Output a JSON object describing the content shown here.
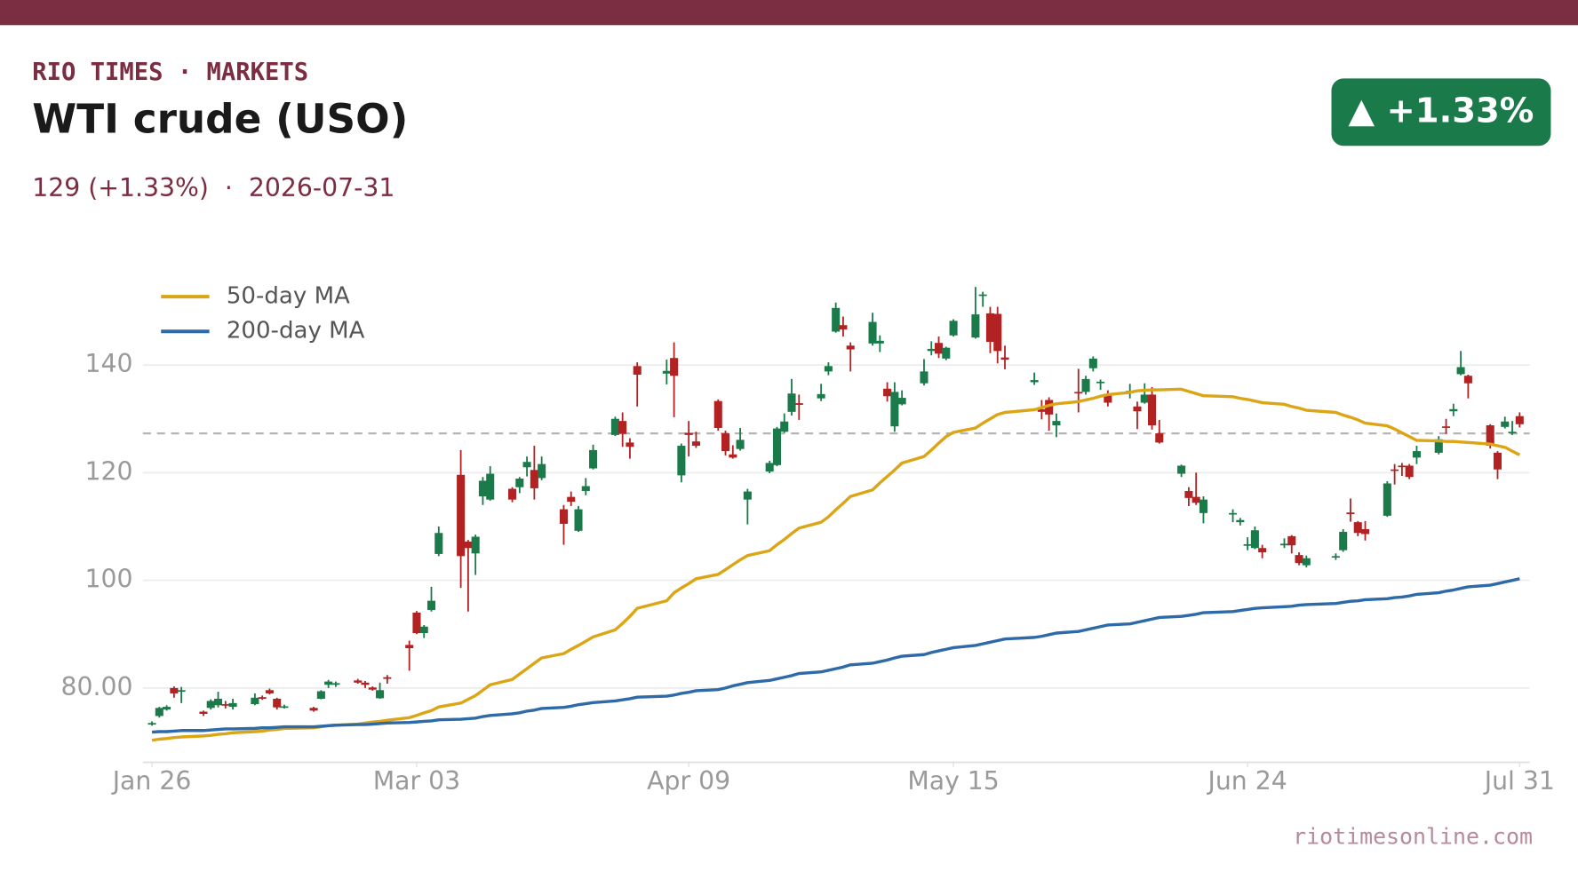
{
  "header": {
    "kicker": "RIO TIMES · MARKETS",
    "badge": "▲ +1.33%"
  },
  "footer": "riotimesonline.com",
  "chart_data": {
    "type": "candlestick",
    "title": "WTI crude (USO)",
    "subtitle": "129 (+1.33%)  ·  2026-07-31",
    "x": [
      "2026-01-26",
      "2026-01-27",
      "2026-01-28",
      "2026-01-29",
      "2026-01-30",
      "2026-02-02",
      "2026-02-03",
      "2026-02-04",
      "2026-02-05",
      "2026-02-06",
      "2026-02-09",
      "2026-02-10",
      "2026-02-11",
      "2026-02-12",
      "2026-02-13",
      "2026-02-17",
      "2026-02-18",
      "2026-02-19",
      "2026-02-20",
      "2026-02-23",
      "2026-02-24",
      "2026-02-25",
      "2026-02-26",
      "2026-02-27",
      "2026-03-02",
      "2026-03-03",
      "2026-03-04",
      "2026-03-05",
      "2026-03-06",
      "2026-03-09",
      "2026-03-10",
      "2026-03-11",
      "2026-03-12",
      "2026-03-13",
      "2026-03-16",
      "2026-03-17",
      "2026-03-18",
      "2026-03-19",
      "2026-03-20",
      "2026-03-23",
      "2026-03-24",
      "2026-03-25",
      "2026-03-26",
      "2026-03-27",
      "2026-03-30",
      "2026-03-31",
      "2026-04-01",
      "2026-04-02",
      "2026-04-06",
      "2026-04-07",
      "2026-04-08",
      "2026-04-09",
      "2026-04-10",
      "2026-04-13",
      "2026-04-14",
      "2026-04-15",
      "2026-04-16",
      "2026-04-17",
      "2026-04-20",
      "2026-04-21",
      "2026-04-22",
      "2026-04-23",
      "2026-04-24",
      "2026-04-27",
      "2026-04-28",
      "2026-04-29",
      "2026-04-30",
      "2026-05-01",
      "2026-05-04",
      "2026-05-05",
      "2026-05-06",
      "2026-05-07",
      "2026-05-08",
      "2026-05-11",
      "2026-05-12",
      "2026-05-13",
      "2026-05-14",
      "2026-05-15",
      "2026-05-18",
      "2026-05-19",
      "2026-05-20",
      "2026-05-21",
      "2026-05-22",
      "2026-05-26",
      "2026-05-27",
      "2026-05-28",
      "2026-05-29",
      "2026-06-01",
      "2026-06-02",
      "2026-06-03",
      "2026-06-04",
      "2026-06-05",
      "2026-06-08",
      "2026-06-09",
      "2026-06-10",
      "2026-06-11",
      "2026-06-12",
      "2026-06-15",
      "2026-06-16",
      "2026-06-17",
      "2026-06-18",
      "2026-06-22",
      "2026-06-23",
      "2026-06-24",
      "2026-06-25",
      "2026-06-26",
      "2026-06-29",
      "2026-06-30",
      "2026-07-01",
      "2026-07-02",
      "2026-07-06",
      "2026-07-07",
      "2026-07-08",
      "2026-07-09",
      "2026-07-10",
      "2026-07-13",
      "2026-07-14",
      "2026-07-15",
      "2026-07-16",
      "2026-07-17",
      "2026-07-20",
      "2026-07-21",
      "2026-07-22",
      "2026-07-23",
      "2026-07-24",
      "2026-07-27",
      "2026-07-28",
      "2026-07-29",
      "2026-07-30",
      "2026-07-31"
    ],
    "open": [
      73.2,
      74.8,
      76.0,
      80.0,
      79.4,
      75.6,
      76.3,
      76.8,
      77.0,
      76.5,
      77.0,
      78.3,
      79.6,
      78.0,
      76.5,
      76.3,
      78.0,
      80.6,
      80.6,
      81.4,
      81.0,
      80.1,
      78.1,
      82.0,
      88.0,
      94.0,
      90.2,
      94.5,
      104.9,
      119.6,
      107.2,
      105.0,
      115.6,
      115.0,
      117.0,
      117.3,
      121.0,
      120.5,
      119.0,
      113.2,
      115.5,
      109.2,
      116.6,
      120.8,
      127.0,
      129.6,
      125.6,
      139.8,
      138.4,
      141.3,
      119.5,
      127.4,
      125.8,
      133.3,
      127.3,
      123.4,
      124.4,
      115.0,
      120.2,
      121.4,
      127.6,
      131.3,
      132.9,
      133.8,
      138.8,
      146.2,
      147.4,
      143.6,
      144.0,
      144.0,
      135.6,
      128.6,
      132.7,
      136.6,
      142.6,
      144.1,
      141.2,
      145.5,
      145.1,
      152.9,
      149.6,
      149.5,
      141.4,
      136.8,
      131.8,
      133.5,
      128.8,
      135.0,
      135.0,
      139.4,
      136.7,
      134.6,
      134.8,
      132.3,
      133.0,
      134.5,
      127.3,
      119.8,
      116.6,
      115.5,
      112.5,
      112.3,
      110.8,
      106.5,
      106.0,
      106.0,
      106.5,
      108.2,
      104.7,
      102.8,
      104.3,
      105.6,
      112.6,
      110.8,
      109.5,
      112.0,
      120.6,
      121.3,
      121.3,
      122.8,
      123.7,
      128.6,
      131.4,
      138.3,
      138.0,
      128.8,
      123.7,
      128.5,
      127.3,
      130.5
    ],
    "high": [
      73.8,
      76.5,
      76.8,
      80.3,
      80.2,
      75.8,
      77.9,
      79.3,
      77.6,
      78.0,
      79.0,
      78.6,
      79.9,
      78.2,
      76.9,
      76.5,
      79.6,
      81.5,
      81.2,
      81.7,
      81.3,
      80.3,
      81.0,
      82.4,
      88.8,
      94.3,
      91.7,
      98.8,
      110.0,
      124.2,
      107.5,
      108.5,
      119.2,
      121.2,
      117.3,
      119.2,
      123.0,
      125.0,
      123.0,
      114.0,
      116.5,
      113.8,
      119.0,
      125.2,
      130.4,
      131.2,
      126.4,
      140.5,
      141.0,
      144.2,
      125.4,
      129.6,
      127.6,
      133.6,
      127.8,
      125.1,
      128.3,
      117.0,
      122.2,
      128.5,
      131.0,
      137.4,
      134.5,
      136.5,
      140.5,
      151.6,
      149.0,
      144.2,
      149.7,
      145.5,
      136.8,
      136.8,
      135.3,
      141.1,
      144.4,
      145.3,
      143.4,
      148.5,
      154.5,
      153.6,
      150.8,
      150.8,
      143.6,
      138.6,
      133.5,
      134.0,
      131.0,
      139.3,
      138.0,
      141.6,
      137.3,
      135.3,
      136.5,
      133.2,
      136.6,
      135.9,
      129.8,
      121.5,
      117.3,
      120.0,
      115.6,
      113.2,
      111.6,
      108.0,
      110.0,
      106.6,
      107.8,
      108.4,
      105.2,
      104.6,
      105.0,
      109.5,
      115.2,
      111.0,
      111.0,
      118.4,
      121.6,
      121.8,
      121.6,
      125.0,
      126.8,
      130.0,
      132.8,
      142.6,
      138.2,
      129.0,
      124.0,
      130.4,
      129.6,
      131.2
    ],
    "low": [
      73.0,
      74.5,
      75.8,
      78.2,
      77.2,
      74.8,
      76.0,
      76.4,
      76.2,
      76.0,
      76.8,
      77.8,
      78.8,
      76.0,
      76.2,
      75.6,
      77.9,
      80.0,
      80.2,
      80.8,
      80.0,
      79.5,
      78.0,
      80.8,
      83.2,
      90.0,
      89.3,
      94.2,
      104.5,
      98.6,
      94.2,
      101.0,
      114.0,
      114.8,
      114.5,
      116.2,
      119.3,
      115.0,
      118.6,
      106.6,
      113.8,
      109.0,
      115.8,
      120.6,
      126.8,
      124.8,
      122.6,
      132.3,
      136.4,
      130.3,
      118.2,
      123.0,
      124.6,
      127.8,
      123.2,
      122.6,
      124.1,
      110.4,
      119.9,
      121.2,
      127.4,
      130.6,
      129.8,
      133.3,
      138.1,
      146.0,
      145.3,
      138.8,
      143.6,
      142.4,
      133.2,
      127.6,
      132.5,
      136.2,
      141.8,
      141.3,
      140.9,
      145.3,
      144.9,
      150.8,
      142.2,
      140.3,
      139.2,
      136.3,
      129.9,
      127.8,
      126.6,
      131.2,
      134.5,
      138.8,
      135.4,
      132.3,
      133.8,
      128.1,
      132.8,
      128.0,
      125.4,
      119.2,
      113.8,
      114.0,
      110.6,
      110.8,
      110.2,
      105.6,
      105.8,
      104.1,
      106.0,
      105.0,
      102.8,
      102.4,
      103.8,
      105.3,
      110.9,
      108.2,
      107.4,
      111.8,
      117.8,
      119.4,
      118.8,
      121.6,
      123.4,
      127.2,
      130.5,
      138.1,
      133.8,
      124.5,
      118.8,
      128.2,
      127.0,
      128.4
    ],
    "close": [
      73.5,
      76.3,
      76.5,
      79.0,
      79.6,
      75.2,
      77.6,
      78.0,
      76.8,
      77.2,
      78.2,
      78.0,
      79.0,
      76.4,
      76.6,
      75.8,
      79.4,
      81.2,
      80.9,
      81.0,
      80.6,
      79.7,
      79.6,
      81.7,
      87.4,
      90.2,
      91.4,
      96.2,
      108.8,
      104.5,
      106.0,
      108.1,
      118.5,
      119.8,
      115.0,
      118.9,
      122.0,
      117.1,
      121.6,
      110.5,
      114.6,
      113.2,
      117.5,
      124.2,
      130.0,
      127.2,
      124.8,
      138.2,
      138.9,
      138.0,
      125.0,
      127.0,
      125.0,
      128.3,
      124.0,
      122.8,
      126.1,
      116.5,
      121.8,
      128.2,
      129.5,
      134.7,
      132.6,
      134.6,
      139.8,
      150.6,
      146.6,
      142.9,
      148.0,
      144.5,
      134.2,
      135.0,
      133.9,
      138.8,
      143.0,
      142.1,
      143.2,
      148.2,
      149.4,
      153.1,
      144.3,
      142.6,
      141.0,
      137.2,
      131.3,
      130.8,
      129.6,
      134.9,
      137.4,
      141.2,
      136.9,
      133.0,
      135.2,
      131.4,
      134.5,
      128.8,
      125.6,
      121.3,
      115.3,
      114.4,
      115.0,
      112.5,
      111.2,
      106.7,
      109.3,
      105.2,
      106.8,
      106.5,
      103.2,
      104.1,
      104.5,
      109.0,
      112.3,
      108.8,
      108.6,
      118.0,
      120.4,
      121.1,
      119.2,
      124.0,
      126.2,
      128.4,
      131.8,
      139.6,
      136.6,
      125.0,
      120.6,
      129.5,
      127.6,
      129.0
    ],
    "up_color": "#1a7a4a",
    "down_color": "#b22222",
    "series": [
      {
        "name": "50-day MA",
        "color": "#dba516",
        "values": [
          70.3,
          70.5,
          70.6,
          70.8,
          70.9,
          71.1,
          71.2,
          71.4,
          71.5,
          71.7,
          71.9,
          72.0,
          72.2,
          72.3,
          72.5,
          72.6,
          72.8,
          73.0,
          73.1,
          73.3,
          73.5,
          73.7,
          73.8,
          74.0,
          74.5,
          74.9,
          75.4,
          75.8,
          76.5,
          77.2,
          77.9,
          78.6,
          79.6,
          80.6,
          81.6,
          82.6,
          83.6,
          84.6,
          85.6,
          86.4,
          87.2,
          87.9,
          88.7,
          89.5,
          90.8,
          92.0,
          93.3,
          94.8,
          96.2,
          97.7,
          98.6,
          99.4,
          100.3,
          101.1,
          102.0,
          102.9,
          103.8,
          104.6,
          105.5,
          106.6,
          107.6,
          108.7,
          109.7,
          110.8,
          111.8,
          113.1,
          114.3,
          115.6,
          116.8,
          118.1,
          119.3,
          120.5,
          121.8,
          123.0,
          124.2,
          125.5,
          126.7,
          127.5,
          128.3,
          129.2,
          130.0,
          130.8,
          131.2,
          131.7,
          132.1,
          132.5,
          132.8,
          133.2,
          133.5,
          133.8,
          134.2,
          134.5,
          134.9,
          135.2,
          135.3,
          135.4,
          135.4,
          135.5,
          135.1,
          134.7,
          134.3,
          134.1,
          133.8,
          133.6,
          133.3,
          133.0,
          132.7,
          132.3,
          132.0,
          131.6,
          131.2,
          130.7,
          130.3,
          129.8,
          129.2,
          128.7,
          128.1,
          127.4,
          126.7,
          126.0,
          125.9,
          125.8,
          125.8,
          125.7,
          125.6,
          125.3,
          125.0,
          124.7,
          124.0,
          123.3
        ]
      },
      {
        "name": "200-day MA",
        "color": "#2e6aa8",
        "values": [
          71.8,
          71.9,
          71.9,
          72.0,
          72.1,
          72.1,
          72.2,
          72.3,
          72.4,
          72.4,
          72.5,
          72.6,
          72.6,
          72.7,
          72.8,
          72.8,
          72.9,
          73.0,
          73.1,
          73.2,
          73.2,
          73.3,
          73.4,
          73.5,
          73.6,
          73.7,
          73.8,
          73.9,
          74.1,
          74.2,
          74.3,
          74.4,
          74.7,
          74.9,
          75.2,
          75.4,
          75.7,
          75.9,
          76.2,
          76.4,
          76.6,
          76.9,
          77.1,
          77.3,
          77.6,
          77.8,
          78.0,
          78.3,
          78.5,
          78.7,
          79.0,
          79.2,
          79.5,
          79.7,
          80.0,
          80.4,
          80.7,
          81.0,
          81.4,
          81.7,
          82.0,
          82.3,
          82.7,
          83.0,
          83.3,
          83.6,
          83.9,
          84.3,
          84.6,
          84.9,
          85.2,
          85.6,
          85.9,
          86.2,
          86.6,
          86.9,
          87.2,
          87.5,
          87.9,
          88.2,
          88.5,
          88.8,
          89.1,
          89.4,
          89.6,
          89.9,
          90.2,
          90.5,
          90.8,
          91.1,
          91.4,
          91.7,
          91.9,
          92.2,
          92.5,
          92.8,
          93.1,
          93.3,
          93.5,
          93.7,
          94.0,
          94.2,
          94.4,
          94.6,
          94.8,
          94.9,
          95.1,
          95.2,
          95.4,
          95.5,
          95.7,
          95.9,
          96.1,
          96.2,
          96.4,
          96.6,
          96.8,
          96.9,
          97.1,
          97.4,
          97.7,
          98.0,
          98.2,
          98.5,
          98.8,
          99.1,
          99.4,
          99.7,
          100.0,
          100.3
        ]
      }
    ],
    "xlim": [
      "2026-01-26",
      "2026-07-31"
    ],
    "xticks": [
      {
        "value": "2026-01-26",
        "label": "Jan 26"
      },
      {
        "value": "2026-03-03",
        "label": "Mar 03"
      },
      {
        "value": "2026-04-09",
        "label": "Apr 09"
      },
      {
        "value": "2026-05-15",
        "label": "May 15"
      },
      {
        "value": "2026-06-24",
        "label": "Jun 24"
      },
      {
        "value": "2026-07-31",
        "label": "Jul 31"
      }
    ],
    "ylim": [
      66.2,
      154
    ],
    "yticks": [
      {
        "value": 80,
        "label": "80.00"
      },
      100,
      120,
      140
    ],
    "reference_line": 127.3,
    "grid": true,
    "legend": "upper left"
  }
}
